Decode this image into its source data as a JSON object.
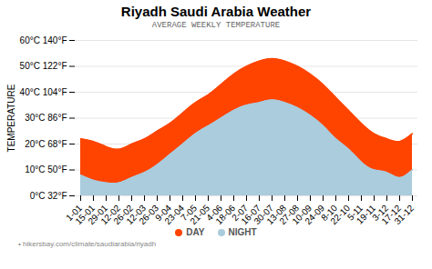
{
  "chart_data": {
    "type": "area",
    "title": "Riyadh Saudi Arabia Weather",
    "subtitle": "AVERAGE WEEKLY TEMPERATURE",
    "ylabel": "TEMPERATURE",
    "caption": "• hikersbay.com/climate/saudiarabia/riyadh",
    "categories": [
      "1-01",
      "15-01",
      "29-01",
      "12-02",
      "26-02",
      "12-03",
      "26-03",
      "9-04",
      "23-04",
      "7-05",
      "21-05",
      "4-06",
      "18-06",
      "2-07",
      "16-07",
      "30-07",
      "13-08",
      "27-08",
      "10-09",
      "24-09",
      "8-10",
      "22-10",
      "5-11",
      "19-11",
      "3-12",
      "17-12",
      "31-12"
    ],
    "series": [
      {
        "name": "DAY",
        "color": "#ff4400",
        "values": [
          22,
          21,
          19,
          18,
          20,
          22,
          25,
          28,
          32,
          36,
          39,
          43,
          47,
          50,
          52,
          53,
          52,
          50,
          47,
          43,
          38,
          33,
          28,
          24,
          22,
          21,
          24
        ]
      },
      {
        "name": "NIGHT",
        "color": "#aaccdd",
        "values": [
          8,
          6,
          5,
          5,
          7,
          9,
          12,
          16,
          20,
          24,
          27,
          30,
          33,
          35,
          36,
          37,
          36,
          34,
          31,
          27,
          22,
          18,
          13,
          10,
          9,
          7,
          10
        ]
      }
    ],
    "ylim": [
      0,
      60
    ],
    "yticks": [
      {
        "value": 0,
        "label": "0°C 32°F"
      },
      {
        "value": 10,
        "label": "10°C 50°F"
      },
      {
        "value": 20,
        "label": "20°C 68°F"
      },
      {
        "value": 30,
        "label": "30°C 86°F"
      },
      {
        "value": 40,
        "label": "40°C 104°F"
      },
      {
        "value": 50,
        "label": "50°C 122°F"
      },
      {
        "value": 60,
        "label": "60°C 140°F"
      }
    ],
    "grid": true,
    "legend": "bottom"
  }
}
